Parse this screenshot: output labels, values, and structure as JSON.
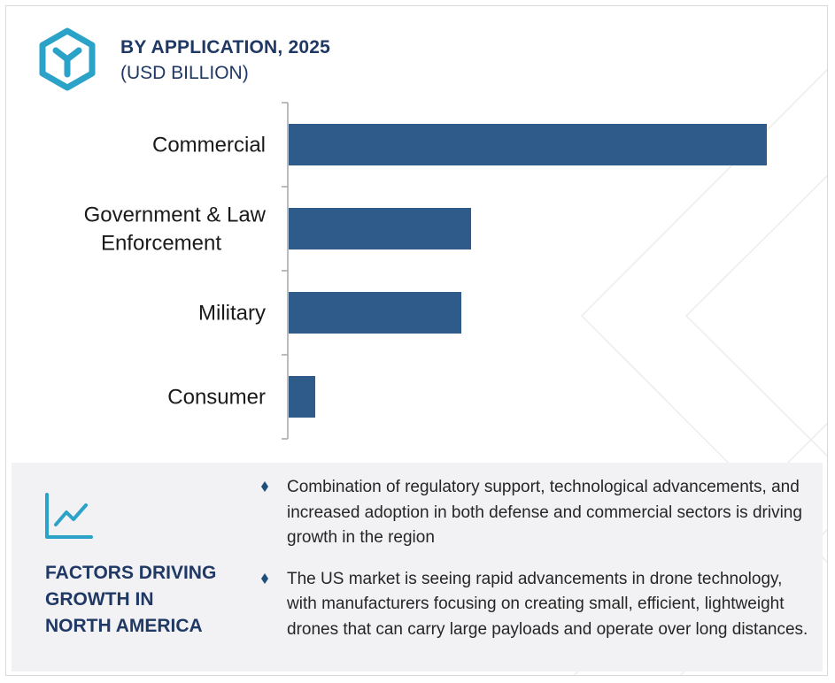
{
  "header": {
    "icon": "hexagon-logo-icon",
    "title": "BY APPLICATION, 2025",
    "subtitle": "(USD BILLION)"
  },
  "chart_data": {
    "type": "bar",
    "orientation": "horizontal",
    "categories": [
      "Commercial",
      "Government & Law Enforcement",
      "Military",
      "Consumer"
    ],
    "category_lines": [
      [
        "Commercial"
      ],
      [
        "Government & Law",
        "Enforcement"
      ],
      [
        "Military"
      ],
      [
        "Consumer"
      ]
    ],
    "values": [
      5.4,
      2.06,
      1.95,
      0.3
    ],
    "xlim": [
      0,
      6
    ],
    "title": "BY APPLICATION, 2025",
    "subtitle": "(USD BILLION)",
    "xlabel": "",
    "ylabel": "",
    "grid": false,
    "legend": "none",
    "bar_color": "#2e5b8a"
  },
  "factors": {
    "icon": "trend-line-chart-icon",
    "title": "FACTORS DRIVING GROWTH IN NORTH AMERICA",
    "title_lines": [
      "FACTORS DRIVING",
      "GROWTH IN",
      "NORTH AMERICA"
    ],
    "bullet_icon": "diamond-bullet-icon",
    "bullets": [
      "Combination of regulatory support, technological advancements, and increased adoption in both defense and commercial sectors is driving growth in the region",
      "The US market is seeing rapid advancements in drone technology, with manufacturers focusing on creating small, efficient, lightweight drones that can carry large payloads and operate over long distances."
    ]
  },
  "colors": {
    "accent": "#2ba3c9",
    "title": "#1f3864",
    "bar": "#2e5b8a",
    "panel_bg": "#f2f2f4"
  }
}
